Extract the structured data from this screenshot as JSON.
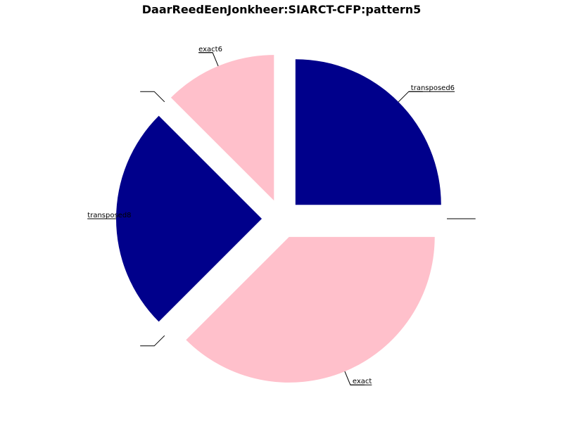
{
  "chart_data": {
    "type": "pie",
    "title": "DaarReedEenJonkheer:SIARCT-CFP:pattern5",
    "slices": [
      {
        "label": "transposed6",
        "value": 25.0,
        "color": "#00008B"
      },
      {
        "label": "",
        "value": 0.0,
        "color": "#FFC0CB"
      },
      {
        "label": "exact",
        "value": 37.5,
        "color": "#FFC0CB"
      },
      {
        "label": "",
        "value": 0.0,
        "color": "#00008B"
      },
      {
        "label": "transposed8",
        "value": 25.0,
        "color": "#00008B"
      },
      {
        "label": "",
        "value": 0.0,
        "color": "#FFC0CB"
      },
      {
        "label": "exact6",
        "value": 12.5,
        "color": "#FFC0CB"
      }
    ],
    "start_angle_deg": 90,
    "direction": "clockwise",
    "exploded": true,
    "legend": "none"
  }
}
